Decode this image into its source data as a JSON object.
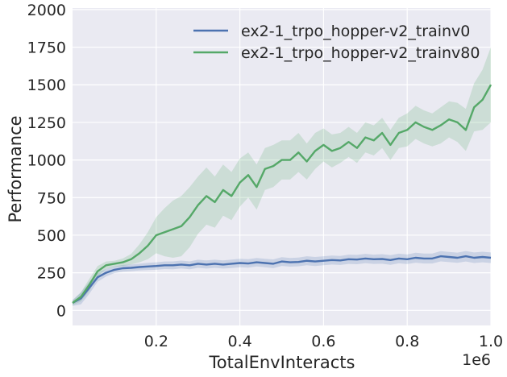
{
  "chart_data": {
    "type": "line",
    "title": "",
    "xlabel": "TotalEnvInteracts",
    "ylabel": "Performance",
    "x_offset_label": "1e6",
    "xlim": [
      0.0,
      1.0
    ],
    "ylim": [
      -100,
      2010
    ],
    "x_ticks": [
      0.2,
      0.4,
      0.6,
      0.8,
      1.0
    ],
    "x_tick_labels": [
      "0.2",
      "0.4",
      "0.6",
      "0.8",
      "1.0"
    ],
    "y_ticks": [
      0,
      250,
      500,
      750,
      1000,
      1250,
      1500,
      1750,
      2000
    ],
    "y_tick_labels": [
      "0",
      "250",
      "500",
      "750",
      "1000",
      "1250",
      "1500",
      "1750",
      "2000"
    ],
    "grid": true,
    "legend_position": "top-right",
    "x": [
      0.0,
      0.02,
      0.04,
      0.06,
      0.08,
      0.1,
      0.12,
      0.14,
      0.16,
      0.18,
      0.2,
      0.22,
      0.24,
      0.26,
      0.28,
      0.3,
      0.32,
      0.34,
      0.36,
      0.38,
      0.4,
      0.42,
      0.44,
      0.46,
      0.48,
      0.5,
      0.52,
      0.54,
      0.56,
      0.58,
      0.6,
      0.62,
      0.64,
      0.66,
      0.68,
      0.7,
      0.72,
      0.74,
      0.76,
      0.78,
      0.8,
      0.82,
      0.84,
      0.86,
      0.88,
      0.9,
      0.92,
      0.94,
      0.96,
      0.98,
      1.0
    ],
    "series": [
      {
        "name": "ex2-1_trpo_hopper-v2_trainv0",
        "color": "#4c72b0",
        "values": [
          50,
          80,
          150,
          220,
          250,
          270,
          280,
          283,
          288,
          292,
          295,
          300,
          300,
          305,
          300,
          310,
          305,
          310,
          305,
          310,
          315,
          312,
          320,
          315,
          310,
          325,
          320,
          322,
          330,
          325,
          330,
          335,
          332,
          340,
          338,
          345,
          340,
          342,
          335,
          345,
          340,
          350,
          345,
          345,
          360,
          355,
          350,
          360,
          350,
          355,
          350
        ],
        "band_half_width": [
          20,
          40,
          40,
          30,
          25,
          22,
          22,
          22,
          22,
          24,
          25,
          25,
          26,
          26,
          26,
          27,
          27,
          27,
          27,
          28,
          28,
          28,
          28,
          28,
          29,
          29,
          29,
          29,
          30,
          30,
          30,
          30,
          30,
          31,
          31,
          31,
          31,
          32,
          32,
          32,
          32,
          33,
          33,
          33,
          34,
          34,
          34,
          35,
          35,
          35,
          35
        ]
      },
      {
        "name": "ex2-1_trpo_hopper-v2_trainv80",
        "color": "#55a868",
        "values": [
          50,
          90,
          170,
          260,
          300,
          310,
          320,
          340,
          380,
          430,
          500,
          520,
          540,
          560,
          620,
          700,
          760,
          720,
          800,
          760,
          850,
          900,
          820,
          940,
          960,
          1000,
          1000,
          1050,
          990,
          1060,
          1100,
          1060,
          1080,
          1120,
          1080,
          1150,
          1130,
          1180,
          1100,
          1180,
          1200,
          1250,
          1220,
          1200,
          1230,
          1270,
          1250,
          1200,
          1350,
          1400,
          1500
        ],
        "band_half_width": [
          15,
          30,
          40,
          35,
          25,
          20,
          25,
          35,
          60,
          90,
          120,
          160,
          190,
          200,
          200,
          190,
          190,
          170,
          170,
          160,
          160,
          150,
          150,
          140,
          140,
          130,
          130,
          130,
          120,
          120,
          110,
          110,
          100,
          100,
          100,
          100,
          100,
          100,
          100,
          100,
          110,
          110,
          110,
          110,
          120,
          120,
          130,
          140,
          160,
          200,
          250
        ]
      }
    ]
  }
}
